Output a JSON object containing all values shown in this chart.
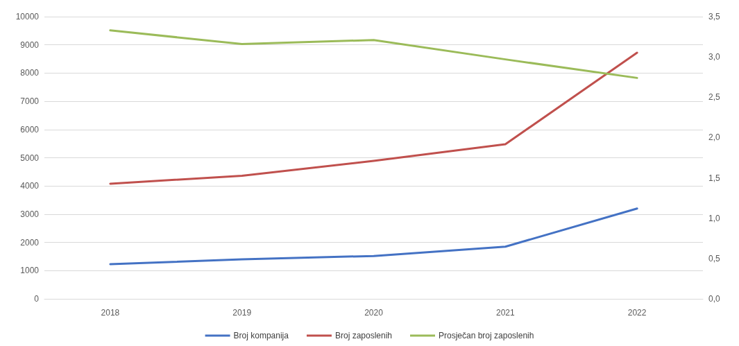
{
  "chart_data": {
    "type": "line",
    "categories": [
      "2018",
      "2019",
      "2020",
      "2021",
      "2022"
    ],
    "series": [
      {
        "name": "Broj kompanija",
        "color": "#4472c4",
        "values": [
          1230,
          1400,
          1520,
          1850,
          3200
        ]
      },
      {
        "name": "Broj zaposlenih",
        "color": "#c0504d",
        "values": [
          4080,
          4360,
          4890,
          5480,
          8720
        ]
      },
      {
        "name": "Prosječan broj zaposlenih",
        "color": "#9bbb59",
        "axis": "y2",
        "values": [
          3.33,
          3.16,
          3.21,
          2.97,
          2.74
        ]
      }
    ],
    "ylim": [
      0,
      10000
    ],
    "yticks": [
      0,
      1000,
      2000,
      3000,
      4000,
      5000,
      6000,
      7000,
      8000,
      9000,
      10000
    ],
    "y2lim": [
      0,
      3.5
    ],
    "y2ticks": [
      {
        "value": 0,
        "label": "0,0"
      },
      {
        "value": 0.5,
        "label": "0,5"
      },
      {
        "value": 1,
        "label": "1,0"
      },
      {
        "value": 1.5,
        "label": "1,5"
      },
      {
        "value": 2,
        "label": "2,0"
      },
      {
        "value": 2.5,
        "label": "2,5"
      },
      {
        "value": 3,
        "label": "3,0"
      },
      {
        "value": 3.5,
        "label": "3,5"
      }
    ],
    "grid": "y",
    "legend": "bottom",
    "marker": "none",
    "line_style": "solid"
  }
}
